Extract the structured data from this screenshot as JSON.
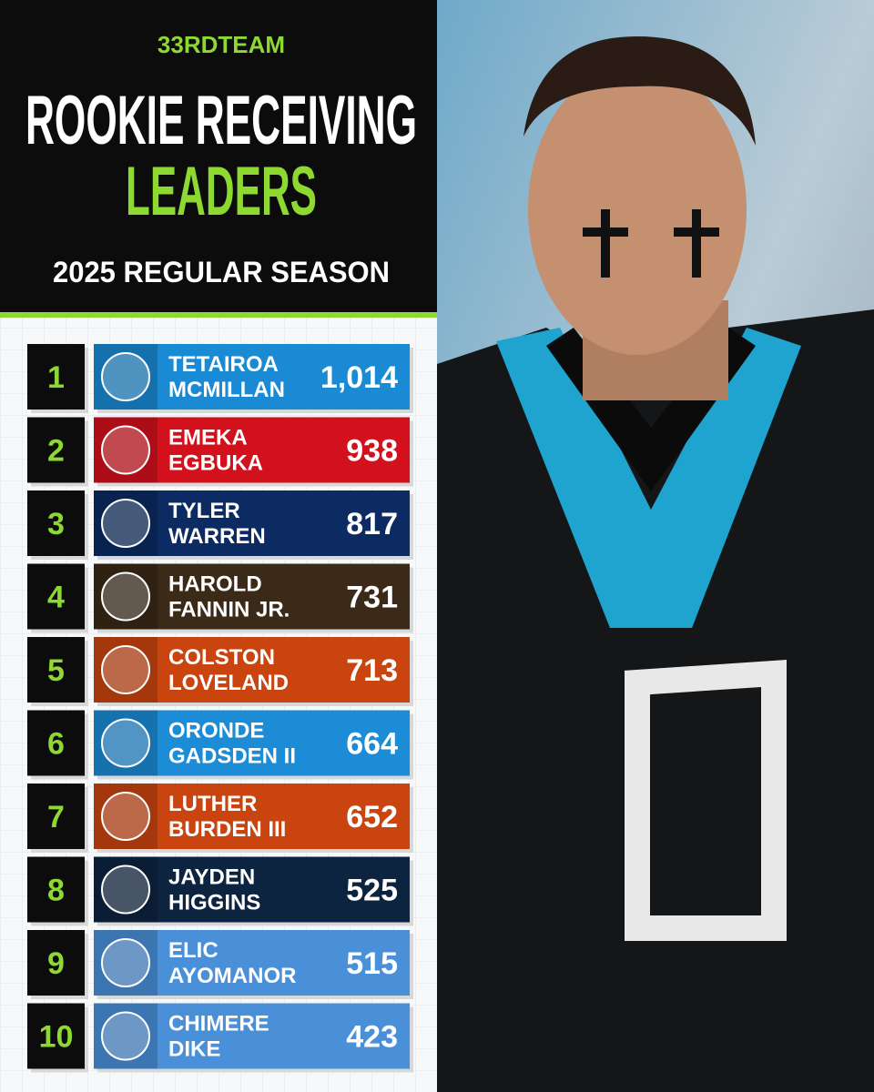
{
  "header": {
    "brand": "33RDTEAM",
    "title_line1": "ROOKIE RECEIVING",
    "title_line2": "LEADERS",
    "subtitle": "2025 REGULAR SEASON"
  },
  "rows": [
    {
      "rank": 1,
      "first": "TETAIROA",
      "last": "MCMILLAN",
      "yards": "1,014",
      "color": "#1a8ad4"
    },
    {
      "rank": 2,
      "first": "EMEKA",
      "last": "EGBUKA",
      "yards": "938",
      "color": "#d2111c"
    },
    {
      "rank": 3,
      "first": "TYLER",
      "last": "WARREN",
      "yards": "817",
      "color": "#0c2b62"
    },
    {
      "rank": 4,
      "first": "HAROLD",
      "last": "FANNIN JR.",
      "yards": "731",
      "color": "#3b2a18"
    },
    {
      "rank": 5,
      "first": "COLSTON",
      "last": "LOVELAND",
      "yards": "713",
      "color": "#c9440f"
    },
    {
      "rank": 6,
      "first": "ORONDE",
      "last": "GADSDEN II",
      "yards": "664",
      "color": "#1c8cd6"
    },
    {
      "rank": 7,
      "first": "LUTHER",
      "last": "BURDEN III",
      "yards": "652",
      "color": "#c9440f"
    },
    {
      "rank": 8,
      "first": "JAYDEN",
      "last": "HIGGINS",
      "yards": "525",
      "color": "#0d2440"
    },
    {
      "rank": 9,
      "first": "ELIC",
      "last": "AYOMANOR",
      "yards": "515",
      "color": "#4a90d9"
    },
    {
      "rank": 10,
      "first": "CHIMERE",
      "last": "DIKE",
      "yards": "423",
      "color": "#4a90d9"
    }
  ]
}
